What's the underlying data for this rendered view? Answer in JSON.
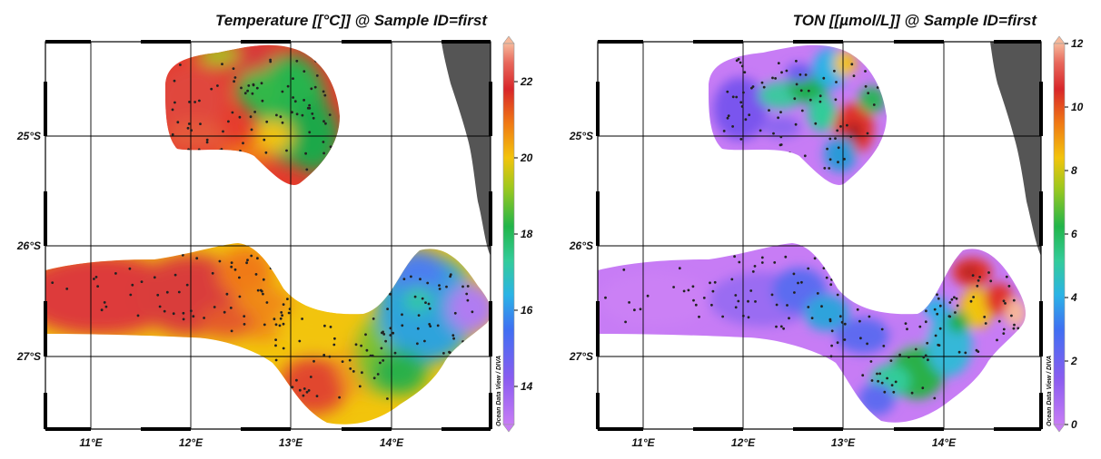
{
  "colors": {
    "land": "#555555",
    "background": "#ffffff",
    "station_dots": "#222222"
  },
  "panels": [
    {
      "title": "Temperature [[°C]] @ Sample ID=first",
      "colorbar": {
        "ticks": [
          "14",
          "16",
          "18",
          "20",
          "22"
        ],
        "min": 13,
        "max": 23,
        "credit": "Ocean Data View / DIVA"
      },
      "x_ticks": [
        "11°E",
        "12°E",
        "13°E",
        "14°E"
      ],
      "y_ticks": [
        "25°S",
        "26°S",
        "27°S"
      ]
    },
    {
      "title": "TON [[µmol/L]] @ Sample ID=first",
      "colorbar": {
        "ticks": [
          "0",
          "2",
          "4",
          "6",
          "8",
          "10",
          "12"
        ],
        "min": 0,
        "max": 12,
        "credit": "Ocean Data View / DIVA"
      },
      "x_ticks": [
        "11°E",
        "12°E",
        "13°E",
        "14°E"
      ],
      "y_ticks": [
        "25°S",
        "26°S",
        "27°S"
      ]
    }
  ]
}
